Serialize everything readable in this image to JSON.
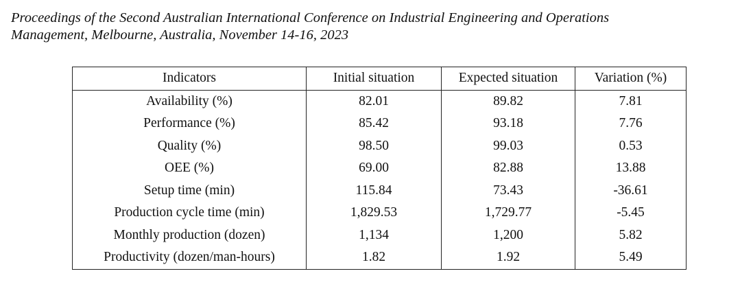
{
  "header": {
    "lines": [
      "Proceedings of the Second Australian International Conference on Industrial Engineering and Operations",
      "Management, Melbourne, Australia, November 14-16, 2023"
    ]
  },
  "table": {
    "columns": [
      "Indicators",
      "Initial situation",
      "Expected situation",
      "Variation (%)"
    ],
    "rows": [
      [
        "Availability (%)",
        "82.01",
        "89.82",
        "7.81"
      ],
      [
        "Performance (%)",
        "85.42",
        "93.18",
        "7.76"
      ],
      [
        "Quality (%)",
        "98.50",
        "99.03",
        "0.53"
      ],
      [
        "OEE (%)",
        "69.00",
        "82.88",
        "13.88"
      ],
      [
        "Setup time (min)",
        "115.84",
        "73.43",
        "-36.61"
      ],
      [
        "Production cycle time (min)",
        "1,829.53",
        "1,729.77",
        "-5.45"
      ],
      [
        "Monthly production (dozen)",
        "1,134",
        "1,200",
        "5.82"
      ],
      [
        "Productivity (dozen/man-hours)",
        "1.82",
        "1.92",
        "5.49"
      ]
    ]
  }
}
